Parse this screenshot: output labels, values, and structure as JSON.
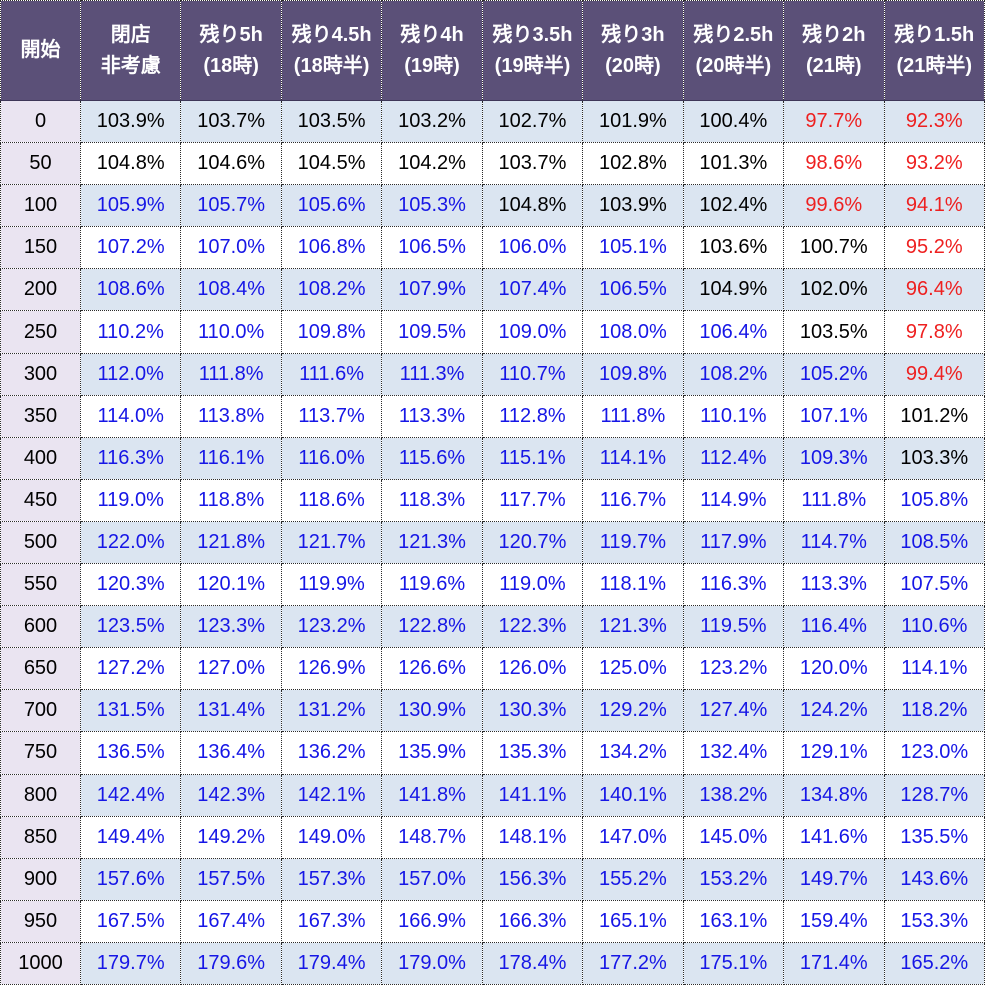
{
  "table": {
    "header": {
      "start_label": "開始",
      "columns": [
        {
          "line1": "閉店",
          "line2": "非考慮"
        },
        {
          "line1": "残り5h",
          "line2": "(18時)"
        },
        {
          "line1": "残り4.5h",
          "line2": "(18時半)"
        },
        {
          "line1": "残り4h",
          "line2": "(19時)"
        },
        {
          "line1": "残り3.5h",
          "line2": "(19時半)"
        },
        {
          "line1": "残り3h",
          "line2": "(20時)"
        },
        {
          "line1": "残り2.5h",
          "line2": "(20時半)"
        },
        {
          "line1": "残り2h",
          "line2": "(21時)"
        },
        {
          "line1": "残り1.5h",
          "line2": "(21時半)"
        }
      ]
    },
    "rows": [
      {
        "start": "0",
        "values": [
          103.9,
          103.7,
          103.5,
          103.2,
          102.7,
          101.9,
          100.4,
          97.7,
          92.3
        ]
      },
      {
        "start": "50",
        "values": [
          104.8,
          104.6,
          104.5,
          104.2,
          103.7,
          102.8,
          101.3,
          98.6,
          93.2
        ]
      },
      {
        "start": "100",
        "values": [
          105.9,
          105.7,
          105.6,
          105.3,
          104.8,
          103.9,
          102.4,
          99.6,
          94.1
        ]
      },
      {
        "start": "150",
        "values": [
          107.2,
          107.0,
          106.8,
          106.5,
          106.0,
          105.1,
          103.6,
          100.7,
          95.2
        ]
      },
      {
        "start": "200",
        "values": [
          108.6,
          108.4,
          108.2,
          107.9,
          107.4,
          106.5,
          104.9,
          102.0,
          96.4
        ]
      },
      {
        "start": "250",
        "values": [
          110.2,
          110.0,
          109.8,
          109.5,
          109.0,
          108.0,
          106.4,
          103.5,
          97.8
        ]
      },
      {
        "start": "300",
        "values": [
          112.0,
          111.8,
          111.6,
          111.3,
          110.7,
          109.8,
          108.2,
          105.2,
          99.4
        ]
      },
      {
        "start": "350",
        "values": [
          114.0,
          113.8,
          113.7,
          113.3,
          112.8,
          111.8,
          110.1,
          107.1,
          101.2
        ]
      },
      {
        "start": "400",
        "values": [
          116.3,
          116.1,
          116.0,
          115.6,
          115.1,
          114.1,
          112.4,
          109.3,
          103.3
        ]
      },
      {
        "start": "450",
        "values": [
          119.0,
          118.8,
          118.6,
          118.3,
          117.7,
          116.7,
          114.9,
          111.8,
          105.8
        ]
      },
      {
        "start": "500",
        "values": [
          122.0,
          121.8,
          121.7,
          121.3,
          120.7,
          119.7,
          117.9,
          114.7,
          108.5
        ]
      },
      {
        "start": "550",
        "values": [
          120.3,
          120.1,
          119.9,
          119.6,
          119.0,
          118.1,
          116.3,
          113.3,
          107.5
        ]
      },
      {
        "start": "600",
        "values": [
          123.5,
          123.3,
          123.2,
          122.8,
          122.3,
          121.3,
          119.5,
          116.4,
          110.6
        ]
      },
      {
        "start": "650",
        "values": [
          127.2,
          127.0,
          126.9,
          126.6,
          126.0,
          125.0,
          123.2,
          120.0,
          114.1
        ]
      },
      {
        "start": "700",
        "values": [
          131.5,
          131.4,
          131.2,
          130.9,
          130.3,
          129.2,
          127.4,
          124.2,
          118.2
        ]
      },
      {
        "start": "750",
        "values": [
          136.5,
          136.4,
          136.2,
          135.9,
          135.3,
          134.2,
          132.4,
          129.1,
          123.0
        ]
      },
      {
        "start": "800",
        "values": [
          142.4,
          142.3,
          142.1,
          141.8,
          141.1,
          140.1,
          138.2,
          134.8,
          128.7
        ]
      },
      {
        "start": "850",
        "values": [
          149.4,
          149.2,
          149.0,
          148.7,
          148.1,
          147.0,
          145.0,
          141.6,
          135.5
        ]
      },
      {
        "start": "900",
        "values": [
          157.6,
          157.5,
          157.3,
          157.0,
          156.3,
          155.2,
          153.2,
          149.7,
          143.6
        ]
      },
      {
        "start": "950",
        "values": [
          167.5,
          167.4,
          167.3,
          166.9,
          166.3,
          165.1,
          163.1,
          159.4,
          153.3
        ]
      },
      {
        "start": "1000",
        "values": [
          179.7,
          179.6,
          179.4,
          179.0,
          178.4,
          177.2,
          175.1,
          171.4,
          165.2
        ]
      }
    ]
  },
  "format": {
    "suffix": "%",
    "decimals": 1,
    "high_threshold": 105,
    "low_threshold": 100
  },
  "colors": {
    "header_bg": "#5b5078",
    "header_text": "#ffffff",
    "start_col_bg": "#eae4f1",
    "row_alt_bg": "#dbe5f1",
    "row_bg": "#ffffff",
    "value_high": "#1616e6",
    "value_low": "#ee2020",
    "value_normal": "#000000",
    "border": "#2b2b2b"
  },
  "chart_data": {
    "type": "table",
    "title": "",
    "row_header_label": "開始",
    "column_headers": [
      "閉店 非考慮",
      "残り5h (18時)",
      "残り4.5h (18時半)",
      "残り4h (19時)",
      "残り3.5h (19時半)",
      "残り3h (20時)",
      "残り2.5h (20時半)",
      "残り2h (21時)",
      "残り1.5h (21時半)"
    ],
    "row_headers": [
      0,
      50,
      100,
      150,
      200,
      250,
      300,
      350,
      400,
      450,
      500,
      550,
      600,
      650,
      700,
      750,
      800,
      850,
      900,
      950,
      1000
    ],
    "values_percent": [
      [
        103.9,
        103.7,
        103.5,
        103.2,
        102.7,
        101.9,
        100.4,
        97.7,
        92.3
      ],
      [
        104.8,
        104.6,
        104.5,
        104.2,
        103.7,
        102.8,
        101.3,
        98.6,
        93.2
      ],
      [
        105.9,
        105.7,
        105.6,
        105.3,
        104.8,
        103.9,
        102.4,
        99.6,
        94.1
      ],
      [
        107.2,
        107.0,
        106.8,
        106.5,
        106.0,
        105.1,
        103.6,
        100.7,
        95.2
      ],
      [
        108.6,
        108.4,
        108.2,
        107.9,
        107.4,
        106.5,
        104.9,
        102.0,
        96.4
      ],
      [
        110.2,
        110.0,
        109.8,
        109.5,
        109.0,
        108.0,
        106.4,
        103.5,
        97.8
      ],
      [
        112.0,
        111.8,
        111.6,
        111.3,
        110.7,
        109.8,
        108.2,
        105.2,
        99.4
      ],
      [
        114.0,
        113.8,
        113.7,
        113.3,
        112.8,
        111.8,
        110.1,
        107.1,
        101.2
      ],
      [
        116.3,
        116.1,
        116.0,
        115.6,
        115.1,
        114.1,
        112.4,
        109.3,
        103.3
      ],
      [
        119.0,
        118.8,
        118.6,
        118.3,
        117.7,
        116.7,
        114.9,
        111.8,
        105.8
      ],
      [
        122.0,
        121.8,
        121.7,
        121.3,
        120.7,
        119.7,
        117.9,
        114.7,
        108.5
      ],
      [
        120.3,
        120.1,
        119.9,
        119.6,
        119.0,
        118.1,
        116.3,
        113.3,
        107.5
      ],
      [
        123.5,
        123.3,
        123.2,
        122.8,
        122.3,
        121.3,
        119.5,
        116.4,
        110.6
      ],
      [
        127.2,
        127.0,
        126.9,
        126.6,
        126.0,
        125.0,
        123.2,
        120.0,
        114.1
      ],
      [
        131.5,
        131.4,
        131.2,
        130.9,
        130.3,
        129.2,
        127.4,
        124.2,
        118.2
      ],
      [
        136.5,
        136.4,
        136.2,
        135.9,
        135.3,
        134.2,
        132.4,
        129.1,
        123.0
      ],
      [
        142.4,
        142.3,
        142.1,
        141.8,
        141.1,
        140.1,
        138.2,
        134.8,
        128.7
      ],
      [
        149.4,
        149.2,
        149.0,
        148.7,
        148.1,
        147.0,
        145.0,
        141.6,
        135.5
      ],
      [
        157.6,
        157.5,
        157.3,
        157.0,
        156.3,
        155.2,
        153.2,
        149.7,
        143.6
      ],
      [
        167.5,
        167.4,
        167.3,
        166.9,
        166.3,
        165.1,
        163.1,
        159.4,
        153.3
      ],
      [
        179.7,
        179.6,
        179.4,
        179.0,
        178.4,
        177.2,
        175.1,
        171.4,
        165.2
      ]
    ],
    "text_color_rule": {
      "blue_if_gte": 105,
      "red_if_lt": 100,
      "else": "black"
    },
    "legend_position": "none",
    "grid": "dotted-borders"
  }
}
